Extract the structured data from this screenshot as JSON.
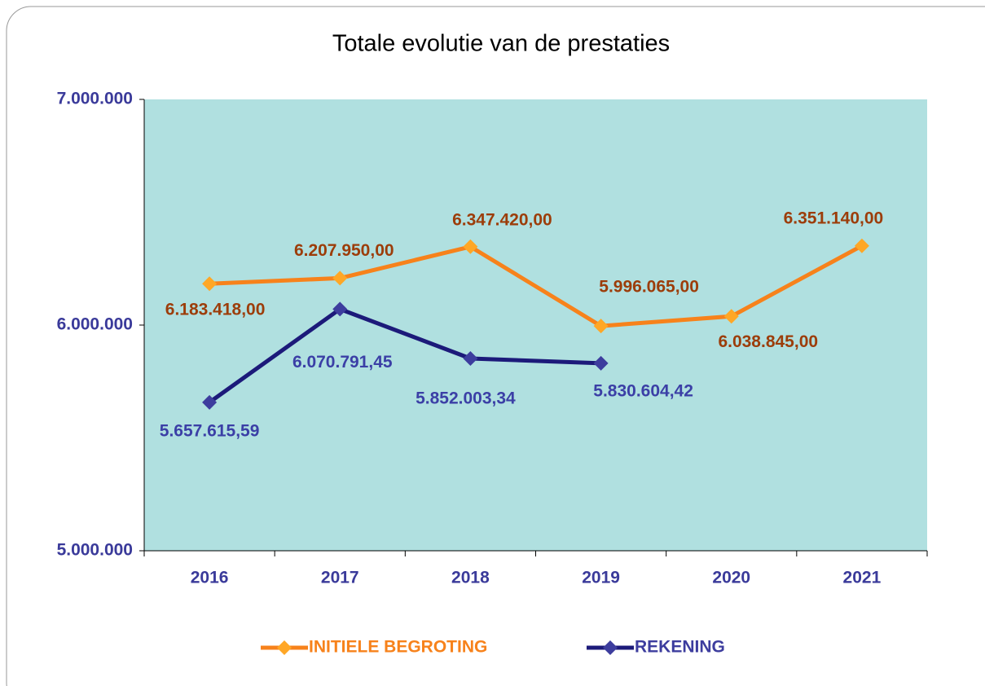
{
  "chart_data": {
    "type": "line",
    "title": "Totale evolutie van de prestaties",
    "categories": [
      "2016",
      "2017",
      "2018",
      "2019",
      "2020",
      "2021"
    ],
    "series": [
      {
        "name": "INITIELE BEGROTING",
        "color": "#f7821b",
        "marker_color": "#ffa726",
        "label_color": "#9c3d0a",
        "values": [
          6183418,
          6207950,
          6347420,
          5996065,
          6038845,
          6351140
        ],
        "value_labels": [
          "6.183.418,00",
          "6.207.950,00",
          "6.347.420,00",
          "5.996.065,00",
          "6.038.845,00",
          "6.351.140,00"
        ]
      },
      {
        "name": "REKENING",
        "color": "#1c1a7a",
        "marker_color": "#3d3d9e",
        "label_color": "#3b3fa6",
        "values": [
          5657615.59,
          6070791.45,
          5852003.34,
          5830604.42,
          null,
          null
        ],
        "value_labels": [
          "5.657.615,59",
          "6.070.791,45",
          "5.852.003,34",
          "5.830.604,42",
          null,
          null
        ]
      }
    ],
    "ylim": [
      5000000,
      7000000
    ],
    "yticks": [
      {
        "value": 5000000,
        "label": "5.000.000"
      },
      {
        "value": 6000000,
        "label": "6.000.000"
      },
      {
        "value": 7000000,
        "label": "7.000.000"
      }
    ],
    "plot_background": "#b0e0e0",
    "legend": "bottom",
    "grid": false
  }
}
